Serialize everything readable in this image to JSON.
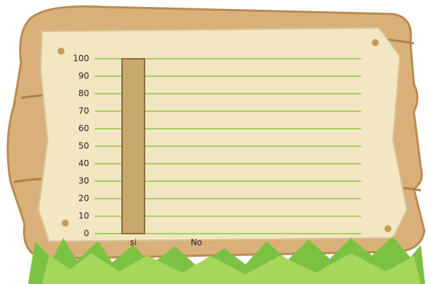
{
  "chart_data": {
    "type": "bar",
    "categories": [
      "si",
      "No"
    ],
    "values": [
      100,
      0
    ],
    "color": "#c8a86b",
    "ylim": [
      0,
      100
    ],
    "yticks": [
      0,
      10,
      20,
      30,
      40,
      50,
      60,
      70,
      80,
      90,
      100
    ],
    "grid": true
  }
}
